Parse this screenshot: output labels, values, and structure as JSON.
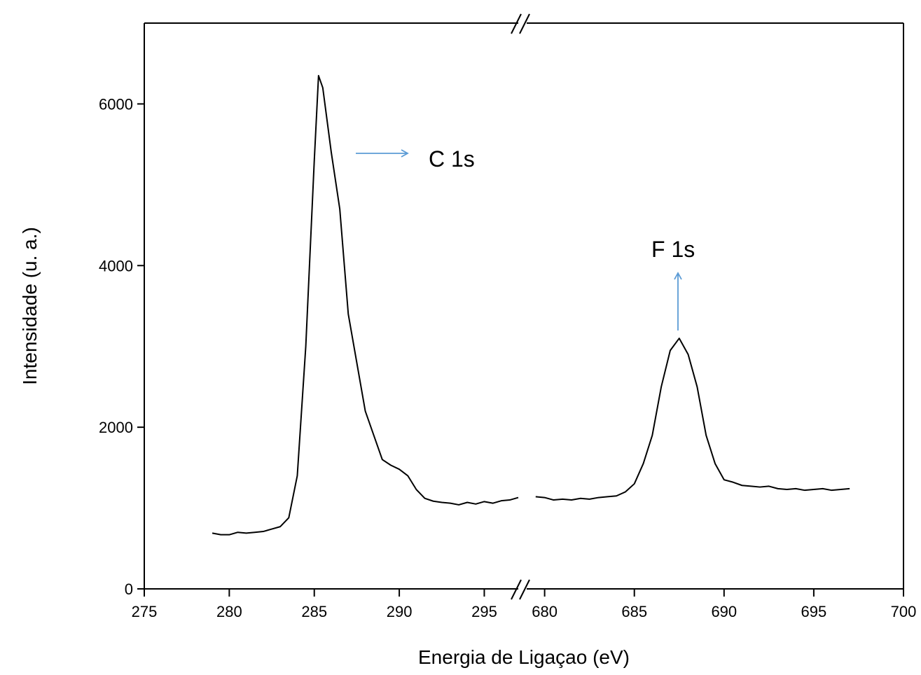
{
  "chart_data": {
    "type": "line",
    "xlabel": "Energia de Ligaçao (eV)",
    "ylabel": "Intensidade (u. a.)",
    "color": "#000000",
    "ylim": [
      0,
      7000
    ],
    "yticks": [
      0,
      2000,
      4000,
      6000
    ],
    "annotations": [
      "C 1s",
      "F 1s"
    ],
    "panels": [
      {
        "xlim": [
          275,
          297
        ],
        "xticks": [
          275,
          280,
          285,
          290,
          295
        ],
        "x": [
          279,
          279.5,
          280,
          280.5,
          281,
          281.5,
          282,
          282.5,
          283,
          283.5,
          284,
          284.5,
          285,
          285.25,
          285.5,
          286,
          286.5,
          287,
          287.5,
          288,
          288.5,
          289,
          289.5,
          290,
          290.5,
          291,
          291.5,
          292,
          292.5,
          293,
          293.5,
          294,
          294.5,
          295,
          295.5,
          296,
          296.5,
          297
        ],
        "values": [
          690,
          670,
          670,
          700,
          690,
          700,
          710,
          740,
          770,
          880,
          1400,
          3000,
          5300,
          6350,
          6200,
          5400,
          4700,
          3400,
          2800,
          2200,
          1900,
          1600,
          1530,
          1480,
          1400,
          1230,
          1120,
          1085,
          1070,
          1060,
          1040,
          1070,
          1050,
          1080,
          1060,
          1090,
          1100,
          1130
        ]
      },
      {
        "xlim": [
          679,
          700
        ],
        "xticks": [
          680,
          685,
          690,
          695,
          700
        ],
        "x": [
          679.5,
          680,
          680.5,
          681,
          681.5,
          682,
          682.5,
          683,
          683.5,
          684,
          684.5,
          685,
          685.5,
          686,
          686.5,
          687,
          687.5,
          688,
          688.5,
          689,
          689.5,
          690,
          690.5,
          691,
          691.5,
          692,
          692.5,
          693,
          693.5,
          694,
          694.5,
          695,
          695.5,
          696,
          696.5,
          697
        ],
        "values": [
          1140,
          1130,
          1100,
          1110,
          1100,
          1120,
          1110,
          1130,
          1140,
          1150,
          1200,
          1300,
          1550,
          1900,
          2500,
          2950,
          3100,
          2900,
          2500,
          1900,
          1550,
          1350,
          1320,
          1280,
          1270,
          1260,
          1270,
          1240,
          1230,
          1240,
          1220,
          1230,
          1240,
          1220,
          1230,
          1240
        ]
      }
    ]
  }
}
